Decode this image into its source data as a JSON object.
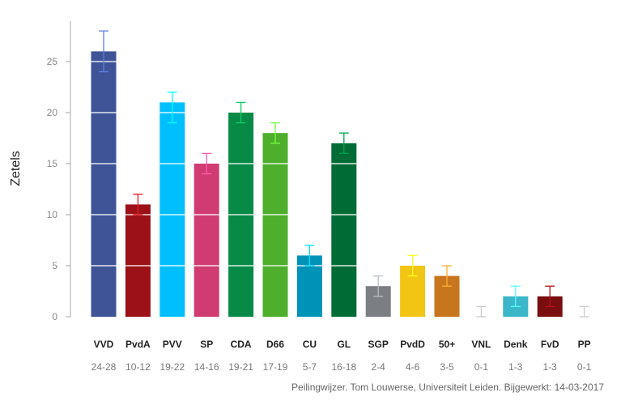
{
  "chart_data": {
    "type": "bar",
    "title": "",
    "xlabel": "",
    "ylabel": "Zetels",
    "ylim": [
      0,
      28
    ],
    "yticks": [
      0,
      5,
      10,
      15,
      20,
      25
    ],
    "grid": "white horizontal lines across bars",
    "categories": [
      "VVD",
      "PvdA",
      "PVV",
      "SP",
      "CDA",
      "D66",
      "CU",
      "GL",
      "SGP",
      "PvdD",
      "50+",
      "VNL",
      "Denk",
      "FvD",
      "PP"
    ],
    "values": [
      26,
      11,
      21,
      15,
      20,
      18,
      6,
      17,
      3,
      5,
      4,
      0,
      2,
      2,
      0
    ],
    "low": [
      24,
      10,
      19,
      14,
      19,
      17,
      5,
      16,
      2,
      4,
      3,
      0,
      1,
      1,
      0
    ],
    "high": [
      28,
      12,
      22,
      16,
      21,
      19,
      7,
      18,
      4,
      6,
      5,
      1,
      3,
      3,
      1
    ],
    "ranges": [
      "24-28",
      "10-12",
      "19-22",
      "14-16",
      "19-21",
      "17-19",
      "5-7",
      "16-18",
      "2-4",
      "4-6",
      "3-5",
      "0-1",
      "1-3",
      "1-3",
      "0-1"
    ],
    "colors": [
      "#3e5496",
      "#9b1117",
      "#00bfff",
      "#d03c72",
      "#068a45",
      "#4daf2b",
      "#0093b8",
      "#006c35",
      "#7b7f83",
      "#f2c413",
      "#c8761e",
      "#888888",
      "#3bb7c9",
      "#790d10",
      "#9999bb"
    ],
    "footer": "Peilingwijzer. Tom Louwerse, Universiteit Leiden. Bijgewerkt: 14-03-2017"
  }
}
